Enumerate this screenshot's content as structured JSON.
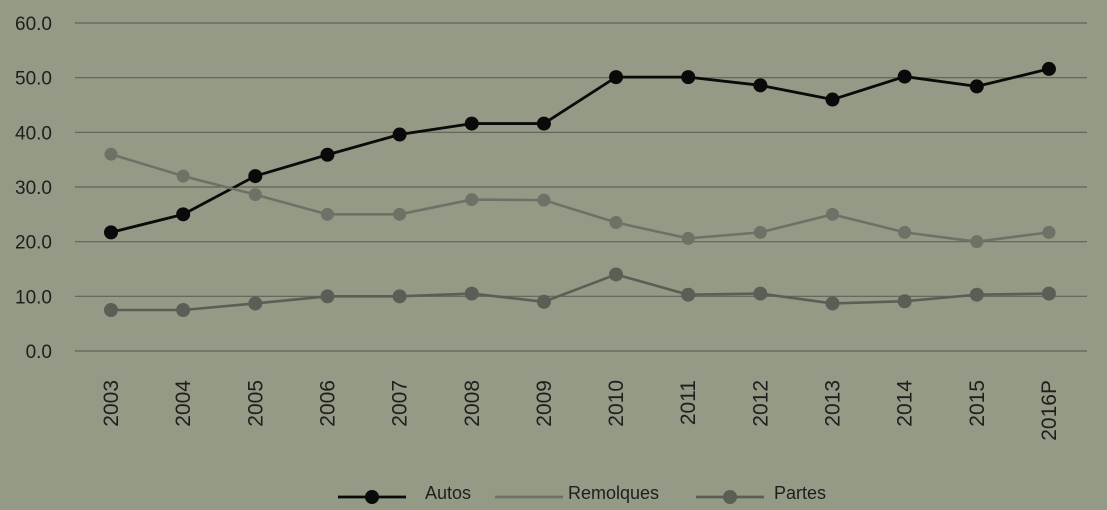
{
  "chart_data": {
    "type": "line",
    "categories": [
      "2003",
      "2004",
      "2005",
      "2006",
      "2007",
      "2008",
      "2009",
      "2010",
      "2011",
      "2012",
      "2013",
      "2014",
      "2015",
      "2016P"
    ],
    "ylim": [
      0,
      60
    ],
    "yticks": [
      "0.0",
      "10.0",
      "20.0",
      "30.0",
      "40.0",
      "50.0",
      "60.0"
    ],
    "grid": true,
    "legend_position": "bottom",
    "series": [
      {
        "name": "Autos",
        "color": "#0a0a0a",
        "marker": true,
        "values": [
          21.7,
          25.0,
          32.0,
          35.9,
          39.6,
          41.6,
          41.6,
          50.1,
          50.1,
          48.6,
          46.0,
          50.2,
          48.4,
          51.6
        ]
      },
      {
        "name": "Remolques",
        "color": "#6e7266",
        "marker": false,
        "values": [
          36.0,
          32.0,
          28.6,
          25.0,
          25.0,
          27.7,
          27.6,
          23.5,
          20.6,
          21.7,
          25.0,
          21.7,
          20.0,
          21.7
        ]
      },
      {
        "name": "Partes",
        "color": "#5b5e55",
        "marker": true,
        "values": [
          7.5,
          7.5,
          8.7,
          10.0,
          10.0,
          10.5,
          9.0,
          14.0,
          10.3,
          10.5,
          8.7,
          9.1,
          10.3,
          10.5
        ]
      }
    ]
  }
}
